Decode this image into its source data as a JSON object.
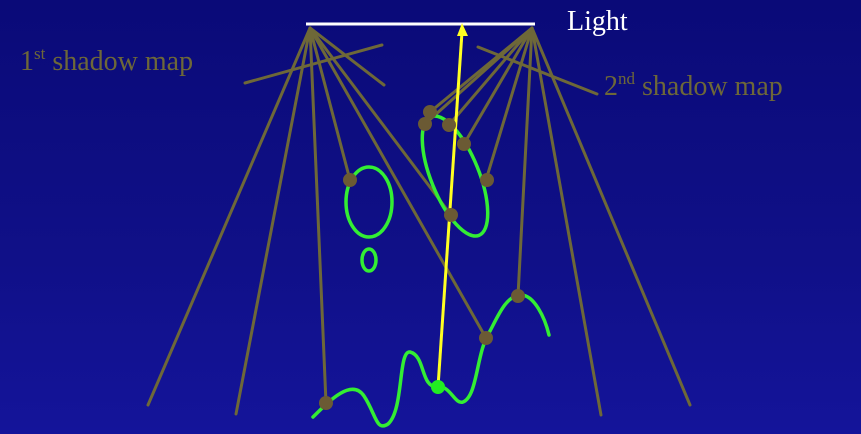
{
  "labels": {
    "light": "Light",
    "first_map": {
      "num": "1",
      "sup": "st",
      "text": " shadow map"
    },
    "second_map": {
      "num": "2",
      "sup": "nd",
      "text": " shadow map"
    }
  },
  "colors": {
    "background": "#0b0b7c",
    "shadow_map": "#6e6838",
    "light": "#ffffff",
    "geometry": "#33ee33",
    "query_ray": "#ffff22",
    "sample_dot": "#6b5a34"
  }
}
